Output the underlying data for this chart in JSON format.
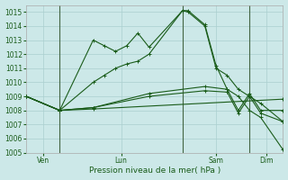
{
  "xlabel": "Pression niveau de la mer( hPa )",
  "ylim": [
    1005,
    1015.5
  ],
  "bg_color": "#cce8e8",
  "grid_color": "#aacfcf",
  "line_color": "#1a5c1a",
  "tick_label_color": "#1a5c1a",
  "xlabel_color": "#1a5c1a",
  "lines": [
    {
      "x": [
        0,
        3,
        6,
        7,
        8,
        9,
        10,
        11,
        14,
        14.5,
        16,
        17,
        18,
        19,
        20,
        21,
        23
      ],
      "y": [
        1009.0,
        1008.0,
        1013.0,
        1012.6,
        1012.2,
        1012.6,
        1013.5,
        1012.5,
        1015.1,
        1015.1,
        1014.1,
        1011.2,
        1009.5,
        1009.0,
        1008.0,
        1007.5,
        1005.2
      ]
    },
    {
      "x": [
        0,
        3,
        6,
        7,
        8,
        9,
        10,
        11,
        14,
        14.5,
        16,
        17,
        18,
        19,
        20,
        21,
        23
      ],
      "y": [
        1009.0,
        1008.0,
        1010.0,
        1010.5,
        1011.0,
        1011.3,
        1011.5,
        1012.0,
        1015.1,
        1015.0,
        1014.0,
        1011.0,
        1010.5,
        1009.5,
        1009.0,
        1008.5,
        1007.2
      ]
    },
    {
      "x": [
        0,
        3,
        6,
        23
      ],
      "y": [
        1009.0,
        1008.0,
        1008.1,
        1008.8
      ]
    },
    {
      "x": [
        0,
        3,
        6,
        11,
        16,
        18,
        19,
        20,
        21,
        23
      ],
      "y": [
        1009.0,
        1008.0,
        1008.2,
        1009.2,
        1009.7,
        1009.5,
        1008.0,
        1009.2,
        1008.0,
        1008.0
      ]
    },
    {
      "x": [
        0,
        3,
        6,
        11,
        16,
        18,
        19,
        20,
        21,
        23
      ],
      "y": [
        1009.0,
        1008.0,
        1008.2,
        1009.0,
        1009.4,
        1009.3,
        1007.8,
        1009.0,
        1007.8,
        1007.2
      ]
    }
  ],
  "vlines_x": [
    3,
    14,
    20
  ],
  "xtick_positions": [
    1.5,
    8.5,
    17,
    21.5
  ],
  "xtick_labels": [
    "Ven",
    "Lun",
    "Sam",
    "Dim"
  ],
  "xlim": [
    0,
    23
  ]
}
